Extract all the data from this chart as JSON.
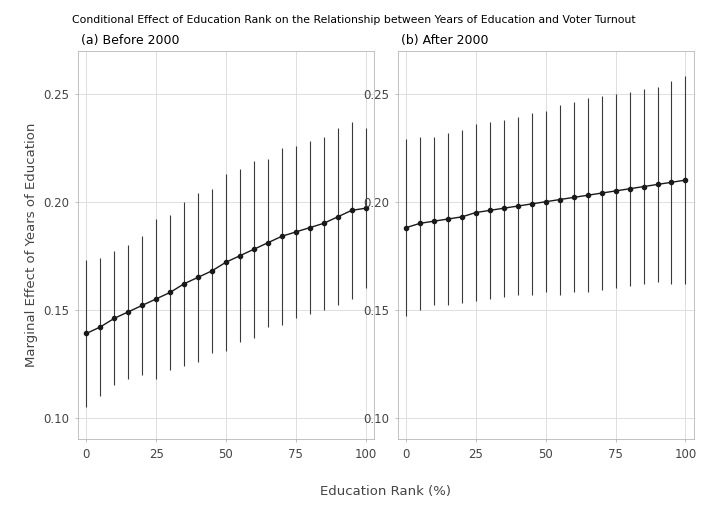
{
  "title": "Conditional Effect of Education Rank on the Relationship between Years of Education and Voter Turnout",
  "xlabel": "Education Rank (%)",
  "ylabel": "Marginal Effect of Years of Education",
  "panel_a_label": "(a) Before 2000",
  "panel_b_label": "(b) After 2000",
  "ylim": [
    0.09,
    0.27
  ],
  "yticks": [
    0.1,
    0.15,
    0.2,
    0.25
  ],
  "xticks": [
    0,
    25,
    50,
    75,
    100
  ],
  "background_color": "#ffffff",
  "grid_color": "#d9d9d9",
  "panel_a": {
    "x": [
      0,
      5,
      10,
      15,
      20,
      25,
      30,
      35,
      40,
      45,
      50,
      55,
      60,
      65,
      70,
      75,
      80,
      85,
      90,
      95,
      100
    ],
    "y": [
      0.139,
      0.142,
      0.146,
      0.149,
      0.152,
      0.155,
      0.158,
      0.162,
      0.165,
      0.168,
      0.172,
      0.175,
      0.178,
      0.181,
      0.184,
      0.186,
      0.188,
      0.19,
      0.193,
      0.196,
      0.197
    ],
    "lower": [
      0.105,
      0.11,
      0.115,
      0.118,
      0.12,
      0.118,
      0.122,
      0.124,
      0.126,
      0.13,
      0.131,
      0.135,
      0.137,
      0.142,
      0.143,
      0.146,
      0.148,
      0.15,
      0.152,
      0.155,
      0.16
    ],
    "upper": [
      0.173,
      0.174,
      0.177,
      0.18,
      0.184,
      0.192,
      0.194,
      0.2,
      0.204,
      0.206,
      0.213,
      0.215,
      0.219,
      0.22,
      0.225,
      0.226,
      0.228,
      0.23,
      0.234,
      0.237,
      0.234
    ]
  },
  "panel_b": {
    "x": [
      0,
      5,
      10,
      15,
      20,
      25,
      30,
      35,
      40,
      45,
      50,
      55,
      60,
      65,
      70,
      75,
      80,
      85,
      90,
      95,
      100
    ],
    "y": [
      0.188,
      0.19,
      0.191,
      0.192,
      0.193,
      0.195,
      0.196,
      0.197,
      0.198,
      0.199,
      0.2,
      0.201,
      0.202,
      0.203,
      0.204,
      0.205,
      0.206,
      0.207,
      0.208,
      0.209,
      0.21
    ],
    "lower": [
      0.147,
      0.15,
      0.152,
      0.152,
      0.153,
      0.154,
      0.155,
      0.156,
      0.157,
      0.157,
      0.158,
      0.157,
      0.158,
      0.158,
      0.159,
      0.16,
      0.161,
      0.162,
      0.163,
      0.162,
      0.162
    ],
    "upper": [
      0.229,
      0.23,
      0.23,
      0.232,
      0.233,
      0.236,
      0.237,
      0.238,
      0.239,
      0.241,
      0.242,
      0.245,
      0.246,
      0.248,
      0.249,
      0.25,
      0.251,
      0.252,
      0.253,
      0.256,
      0.258
    ]
  },
  "line_color": "#1a1a1a",
  "error_color": "#3a3a3a",
  "marker_size": 3.0,
  "line_width": 1.0,
  "error_lw": 0.8,
  "title_fontsize": 7.8,
  "label_fontsize": 9.5,
  "tick_fontsize": 8.5,
  "panel_label_fontsize": 9
}
